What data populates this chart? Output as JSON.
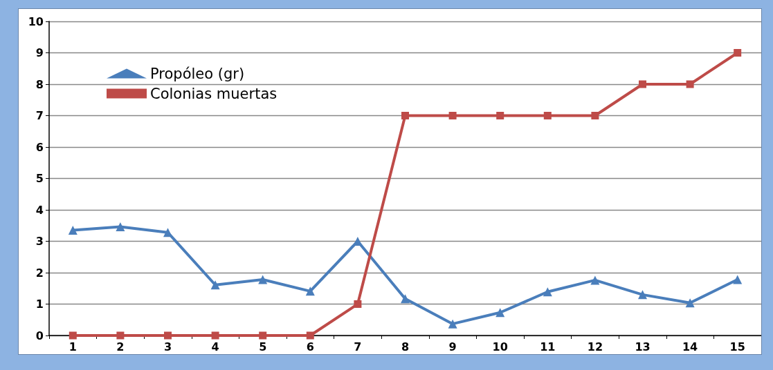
{
  "chart_data": {
    "type": "line",
    "categories": [
      "1",
      "2",
      "3",
      "4",
      "5",
      "6",
      "7",
      "8",
      "9",
      "10",
      "11",
      "12",
      "13",
      "14",
      "15"
    ],
    "series": [
      {
        "name": "Propóleo (gr)",
        "color": "#4a7ebb",
        "marker": "triangle",
        "values": [
          3.35,
          3.46,
          3.28,
          1.61,
          1.78,
          1.41,
          3.0,
          1.17,
          0.37,
          0.73,
          1.39,
          1.76,
          1.3,
          1.04,
          1.78
        ]
      },
      {
        "name": "Colonias muertas",
        "color": "#be4b48",
        "marker": "square",
        "values": [
          0,
          0,
          0,
          0,
          0,
          0,
          1,
          7,
          7,
          7,
          7,
          7,
          8,
          8,
          9
        ]
      }
    ],
    "ylim": [
      0,
      10
    ],
    "yticks": [
      0,
      1,
      2,
      3,
      4,
      5,
      6,
      7,
      8,
      9,
      10
    ],
    "grid": "y",
    "legend": "top left",
    "line_style": "solid"
  }
}
